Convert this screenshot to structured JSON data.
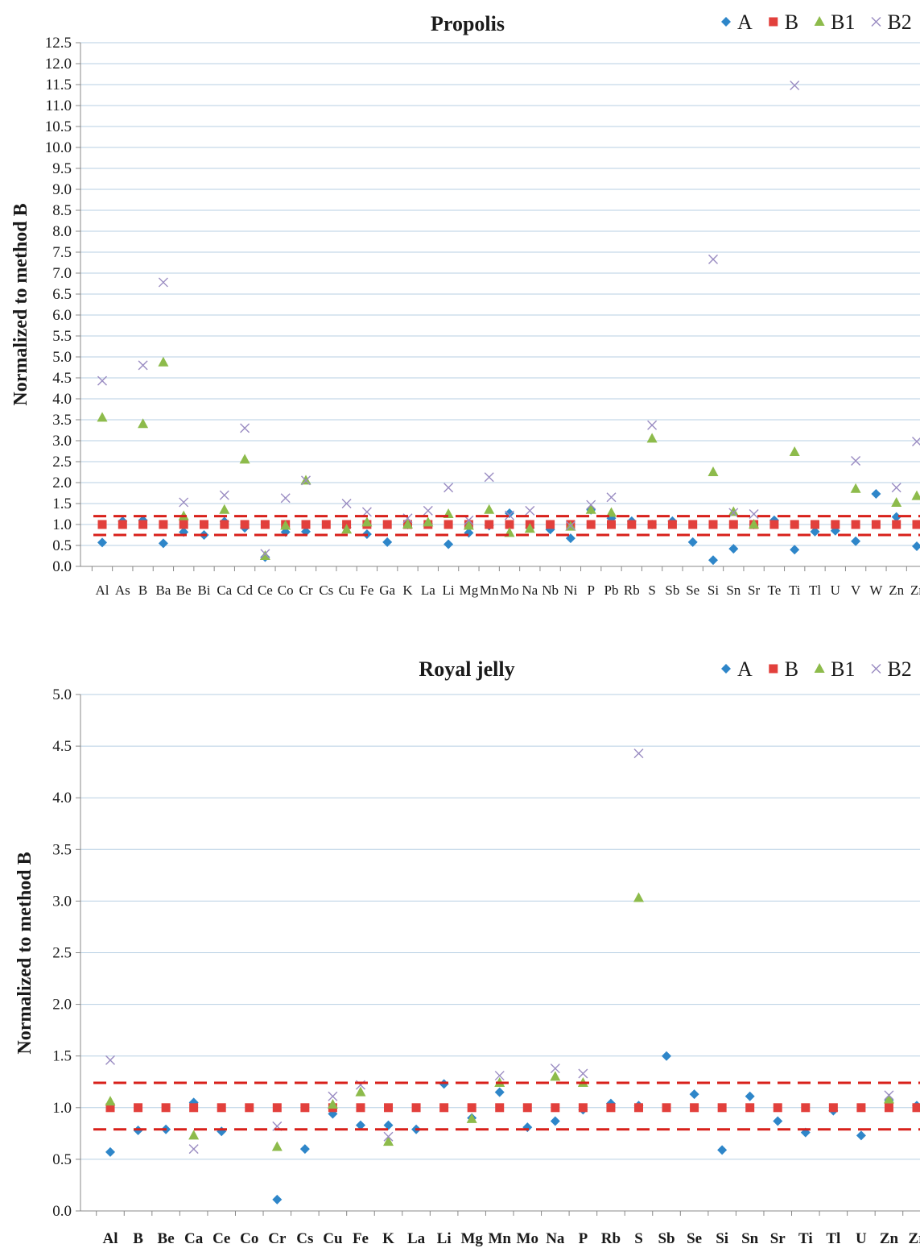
{
  "chart_data": [
    {
      "type": "scatter",
      "title": "Propolis",
      "ylabel": "Normalized to method B",
      "xlabel": "",
      "ylim": [
        0,
        12.5
      ],
      "ytick_step": 0.5,
      "grid": true,
      "legend_position": "top-right",
      "reference_lines": [
        0.75,
        1.2
      ],
      "categories": [
        "Al",
        "As",
        "B",
        "Ba",
        "Be",
        "Bi",
        "Ca",
        "Cd",
        "Ce",
        "Co",
        "Cr",
        "Cs",
        "Cu",
        "Fe",
        "Ga",
        "K",
        "La",
        "Li",
        "Mg",
        "Mn",
        "Mo",
        "Na",
        "Nb",
        "Ni",
        "P",
        "Pb",
        "Rb",
        "S",
        "Sb",
        "Se",
        "Si",
        "Sn",
        "Sr",
        "Te",
        "Ti",
        "Tl",
        "U",
        "V",
        "W",
        "Zn",
        "Zr"
      ],
      "series": [
        {
          "name": "A",
          "color": "#2e86c9",
          "marker": "diamond",
          "values": [
            0.57,
            1.08,
            1.1,
            0.55,
            0.82,
            0.75,
            1.07,
            0.92,
            0.22,
            0.82,
            0.83,
            null,
            0.93,
            0.77,
            0.58,
            1.0,
            1.02,
            0.53,
            0.8,
            0.97,
            1.27,
            0.92,
            0.88,
            0.67,
            1.35,
            1.15,
            1.08,
            1.0,
            1.08,
            0.58,
            0.15,
            0.42,
            1.0,
            1.1,
            0.4,
            0.83,
            0.85,
            0.6,
            1.73,
            1.18,
            0.48
          ]
        },
        {
          "name": "B",
          "color": "#e2403c",
          "marker": "square",
          "values": [
            1,
            1,
            1,
            1,
            1,
            1,
            1,
            1,
            1,
            1,
            1,
            1,
            1,
            1,
            1,
            1,
            1,
            1,
            1,
            1,
            1,
            1,
            1,
            1,
            1,
            1,
            1,
            1,
            1,
            1,
            1,
            1,
            1,
            1,
            1,
            1,
            1,
            1,
            1,
            1,
            1
          ]
        },
        {
          "name": "B1",
          "color": "#8dbb4b",
          "marker": "triangle",
          "values": [
            3.55,
            null,
            3.4,
            4.87,
            1.2,
            null,
            1.35,
            2.55,
            0.25,
            0.97,
            2.05,
            null,
            0.88,
            1.05,
            null,
            1.0,
            1.05,
            1.25,
            0.97,
            1.35,
            0.8,
            0.9,
            null,
            0.95,
            1.35,
            1.28,
            null,
            3.05,
            null,
            null,
            2.25,
            1.3,
            1.0,
            null,
            2.73,
            null,
            null,
            1.85,
            null,
            1.52,
            1.68
          ]
        },
        {
          "name": "B2",
          "color": "#9a8cc2",
          "marker": "x",
          "values": [
            4.43,
            null,
            4.8,
            6.78,
            1.53,
            null,
            1.7,
            3.3,
            0.3,
            1.63,
            2.05,
            null,
            1.5,
            1.3,
            null,
            1.15,
            1.33,
            1.88,
            1.1,
            2.13,
            1.22,
            1.33,
            null,
            0.97,
            1.47,
            1.65,
            null,
            3.37,
            null,
            null,
            7.33,
            1.28,
            1.25,
            null,
            11.48,
            null,
            null,
            2.52,
            null,
            1.88,
            2.98
          ]
        }
      ]
    },
    {
      "type": "scatter",
      "title": "Royal jelly",
      "ylabel": "Normalized to method B",
      "xlabel": "",
      "ylim": [
        0,
        5.0
      ],
      "ytick_step": 0.5,
      "grid": true,
      "legend_position": "top-right",
      "reference_lines": [
        0.79,
        1.24
      ],
      "categories": [
        "Al",
        "B",
        "Be",
        "Ca",
        "Ce",
        "Co",
        "Cr",
        "Cs",
        "Cu",
        "Fe",
        "K",
        "La",
        "Li",
        "Mg",
        "Mn",
        "Mo",
        "Na",
        "P",
        "Rb",
        "S",
        "Sb",
        "Se",
        "Si",
        "Sn",
        "Sr",
        "Ti",
        "Tl",
        "U",
        "Zn",
        "Zr"
      ],
      "series": [
        {
          "name": "A",
          "color": "#2e86c9",
          "marker": "diamond",
          "values": [
            0.57,
            0.78,
            0.79,
            1.05,
            0.77,
            null,
            0.11,
            0.6,
            0.94,
            0.83,
            0.83,
            0.79,
            1.23,
            0.9,
            1.15,
            0.81,
            0.87,
            0.98,
            1.04,
            1.02,
            1.5,
            1.13,
            0.59,
            1.11,
            0.87,
            0.76,
            0.97,
            0.73,
            1.07,
            1.02
          ]
        },
        {
          "name": "B",
          "color": "#e2403c",
          "marker": "square",
          "values": [
            1,
            1,
            1,
            1,
            1,
            1,
            1,
            1,
            1,
            1,
            1,
            1,
            1,
            1,
            1,
            1,
            1,
            1,
            1,
            1,
            1,
            1,
            1,
            1,
            1,
            1,
            1,
            1,
            1,
            1
          ]
        },
        {
          "name": "B1",
          "color": "#8dbb4b",
          "marker": "triangle",
          "values": [
            1.06,
            null,
            null,
            0.73,
            null,
            null,
            0.62,
            null,
            1.03,
            1.15,
            0.67,
            null,
            null,
            0.89,
            1.24,
            null,
            1.3,
            1.24,
            null,
            3.03,
            null,
            null,
            null,
            null,
            null,
            null,
            null,
            null,
            1.08,
            null
          ]
        },
        {
          "name": "B2",
          "color": "#9a8cc2",
          "marker": "x",
          "values": [
            1.46,
            null,
            null,
            0.6,
            null,
            null,
            0.82,
            null,
            1.11,
            1.22,
            0.72,
            null,
            null,
            null,
            1.31,
            null,
            1.38,
            1.33,
            null,
            4.43,
            null,
            null,
            null,
            null,
            null,
            null,
            null,
            null,
            1.12,
            null
          ]
        }
      ]
    }
  ]
}
